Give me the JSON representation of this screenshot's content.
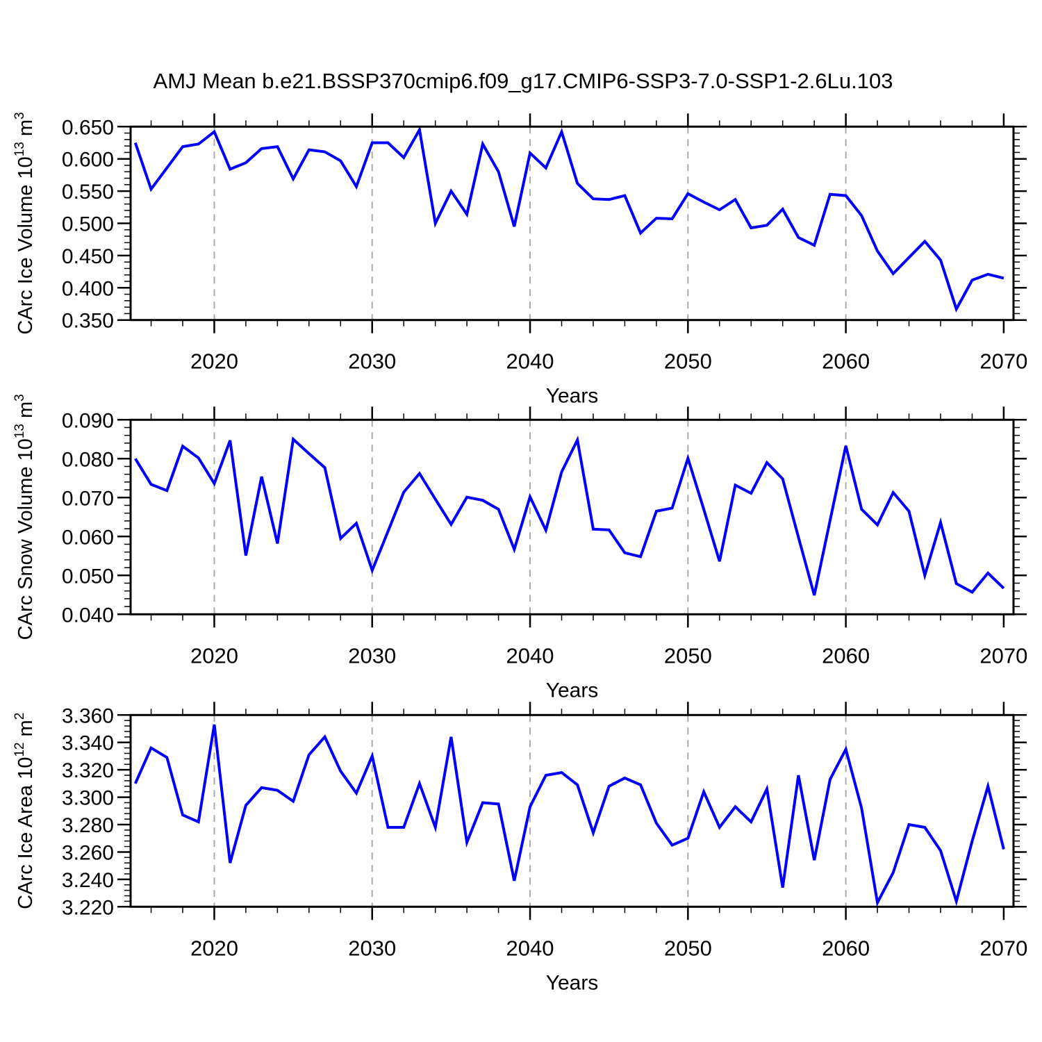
{
  "title": "AMJ Mean b.e21.BSSP370cmip6.f09_g17.CMIP6-SSP3-7.0-SSP1-2.6Lu.103",
  "colors": {
    "line": "#0000ff",
    "grid": "#aaaaaa",
    "axis": "#000000",
    "background": "#ffffff"
  },
  "x_axis": {
    "label": "Years",
    "major_ticks": [
      2020,
      2030,
      2040,
      2050,
      2060,
      2070
    ],
    "minor_tick_step_years": 2,
    "gridline_years": [
      2020,
      2030,
      2040,
      2050,
      2060
    ],
    "years": [
      2015,
      2016,
      2017,
      2018,
      2019,
      2020,
      2021,
      2022,
      2023,
      2024,
      2025,
      2026,
      2027,
      2028,
      2029,
      2030,
      2031,
      2032,
      2033,
      2034,
      2035,
      2036,
      2037,
      2038,
      2039,
      2040,
      2041,
      2042,
      2043,
      2044,
      2045,
      2046,
      2047,
      2048,
      2049,
      2050,
      2051,
      2052,
      2053,
      2054,
      2055,
      2056,
      2057,
      2058,
      2059,
      2060,
      2061,
      2062,
      2063,
      2064,
      2065,
      2066,
      2067,
      2068,
      2069,
      2070
    ]
  },
  "chart_data": [
    {
      "type": "line",
      "name": "CArc Ice Volume",
      "ylabel": "CArc Ice Volume 10^13 m^3",
      "ylabel_parts": [
        {
          "t": "CArc Ice Volume 10"
        },
        {
          "t": "13",
          "sup": true
        },
        {
          "t": " m"
        },
        {
          "t": "3",
          "sup": true
        }
      ],
      "ylim": [
        0.35,
        0.65
      ],
      "ytick_major": 0.05,
      "ytick_minor": 0.01,
      "tick_decimals": 3,
      "values": [
        0.625,
        0.553,
        0.586,
        0.619,
        0.623,
        0.642,
        0.584,
        0.594,
        0.616,
        0.619,
        0.569,
        0.614,
        0.611,
        0.597,
        0.557,
        0.625,
        0.625,
        0.602,
        0.645,
        0.5,
        0.55,
        0.514,
        0.623,
        0.58,
        0.495,
        0.609,
        0.586,
        0.642,
        0.562,
        0.538,
        0.537,
        0.543,
        0.485,
        0.508,
        0.507,
        0.546,
        0.533,
        0.521,
        0.537,
        0.493,
        0.497,
        0.522,
        0.478,
        0.466,
        0.545,
        0.543,
        0.512,
        0.457,
        0.422,
        0.447,
        0.472,
        0.443,
        0.367,
        0.412,
        0.421,
        0.415
      ]
    },
    {
      "type": "line",
      "name": "CArc Snow Volume",
      "ylabel": "CArc Snow Volume 10^13 m^3",
      "ylabel_parts": [
        {
          "t": "CArc Snow Volume 10"
        },
        {
          "t": "13",
          "sup": true
        },
        {
          "t": " m"
        },
        {
          "t": "3",
          "sup": true
        }
      ],
      "ylim": [
        0.04,
        0.09
      ],
      "ytick_major": 0.01,
      "ytick_minor": 0.002,
      "tick_decimals": 3,
      "values": [
        0.08,
        0.0734,
        0.0718,
        0.0832,
        0.0802,
        0.0736,
        0.0847,
        0.0551,
        0.0754,
        0.0582,
        0.085,
        0.0813,
        0.0777,
        0.0595,
        0.0634,
        0.0513,
        0.0613,
        0.0714,
        0.0762,
        0.0696,
        0.0631,
        0.0701,
        0.0693,
        0.067,
        0.0567,
        0.0702,
        0.0616,
        0.0766,
        0.0848,
        0.0619,
        0.0617,
        0.0558,
        0.0548,
        0.0665,
        0.0673,
        0.0801,
        0.067,
        0.0536,
        0.0732,
        0.0711,
        0.079,
        0.0748,
        0.0598,
        0.0449,
        0.0641,
        0.0833,
        0.067,
        0.063,
        0.0713,
        0.0665,
        0.05,
        0.0636,
        0.0479,
        0.0457,
        0.0506,
        0.0467
      ]
    },
    {
      "type": "line",
      "name": "CArc Ice Area",
      "ylabel": "CArc Ice Area 10^12 m^2",
      "ylabel_parts": [
        {
          "t": "CArc Ice Area 10"
        },
        {
          "t": "12",
          "sup": true
        },
        {
          "t": " m"
        },
        {
          "t": "2",
          "sup": true
        }
      ],
      "ylim": [
        3.22,
        3.36
      ],
      "ytick_major": 0.02,
      "ytick_minor": 0.004,
      "tick_decimals": 3,
      "values": [
        3.31,
        3.336,
        3.329,
        3.287,
        3.282,
        3.353,
        3.252,
        3.294,
        3.307,
        3.305,
        3.297,
        3.331,
        3.344,
        3.319,
        3.303,
        3.33,
        3.278,
        3.278,
        3.31,
        3.278,
        3.344,
        3.267,
        3.296,
        3.295,
        3.239,
        3.293,
        3.316,
        3.318,
        3.309,
        3.274,
        3.308,
        3.314,
        3.309,
        3.281,
        3.265,
        3.27,
        3.304,
        3.278,
        3.293,
        3.282,
        3.306,
        3.234,
        3.316,
        3.254,
        3.313,
        3.335,
        3.292,
        3.223,
        3.245,
        3.28,
        3.278,
        3.261,
        3.224,
        3.268,
        3.308,
        3.262
      ]
    }
  ]
}
